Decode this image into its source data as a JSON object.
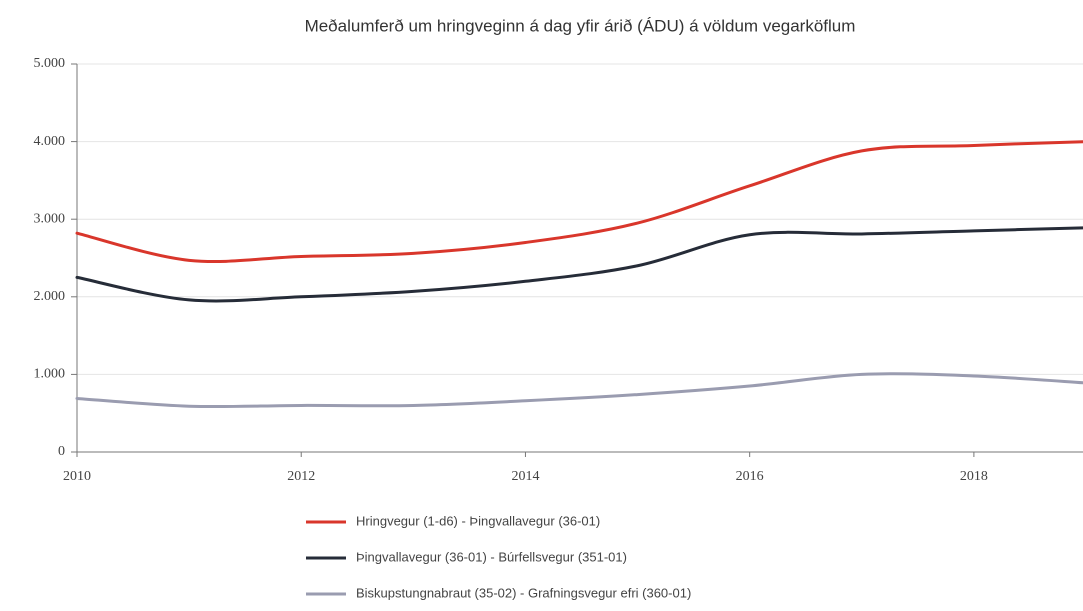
{
  "chart_data": {
    "type": "line",
    "title": "Meðalumferð um hringveginn á dag yfir árið (ÁDU) á völdum vegarköflum",
    "x": [
      2010,
      2011,
      2012,
      2013,
      2014,
      2015,
      2016,
      2017,
      2018,
      2019
    ],
    "series": [
      {
        "name": "Hringvegur (1-d6) -  Þingvallavegur (36-01)",
        "color": "#d9362b",
        "values": [
          2820,
          2470,
          2520,
          2560,
          2700,
          2950,
          3430,
          3880,
          3950,
          4000
        ]
      },
      {
        "name": "Þingvallavegur (36-01) -  Búrfellsvegur (351-01)",
        "color": "#262c38",
        "values": [
          2250,
          1960,
          2000,
          2070,
          2200,
          2400,
          2800,
          2810,
          2850,
          2890
        ]
      },
      {
        "name": "Biskupstungnabraut (35-02) -  Grafningsvegur efri (360-01)",
        "color": "#9a9cb0",
        "values": [
          690,
          590,
          600,
          600,
          660,
          740,
          850,
          1000,
          980,
          890
        ]
      }
    ],
    "xlim": [
      2010,
      2019
    ],
    "xticks": [
      2010,
      2012,
      2014,
      2016,
      2018
    ],
    "ylim": [
      0,
      5000
    ],
    "yticks": [
      0,
      {
        "value": 1000,
        "label": "1.000"
      },
      {
        "value": 2000,
        "label": "2.000"
      },
      {
        "value": 3000,
        "label": "3.000"
      },
      {
        "value": 4000,
        "label": "4.000"
      },
      {
        "value": 5000,
        "label": "5.000"
      }
    ],
    "grid": true
  }
}
